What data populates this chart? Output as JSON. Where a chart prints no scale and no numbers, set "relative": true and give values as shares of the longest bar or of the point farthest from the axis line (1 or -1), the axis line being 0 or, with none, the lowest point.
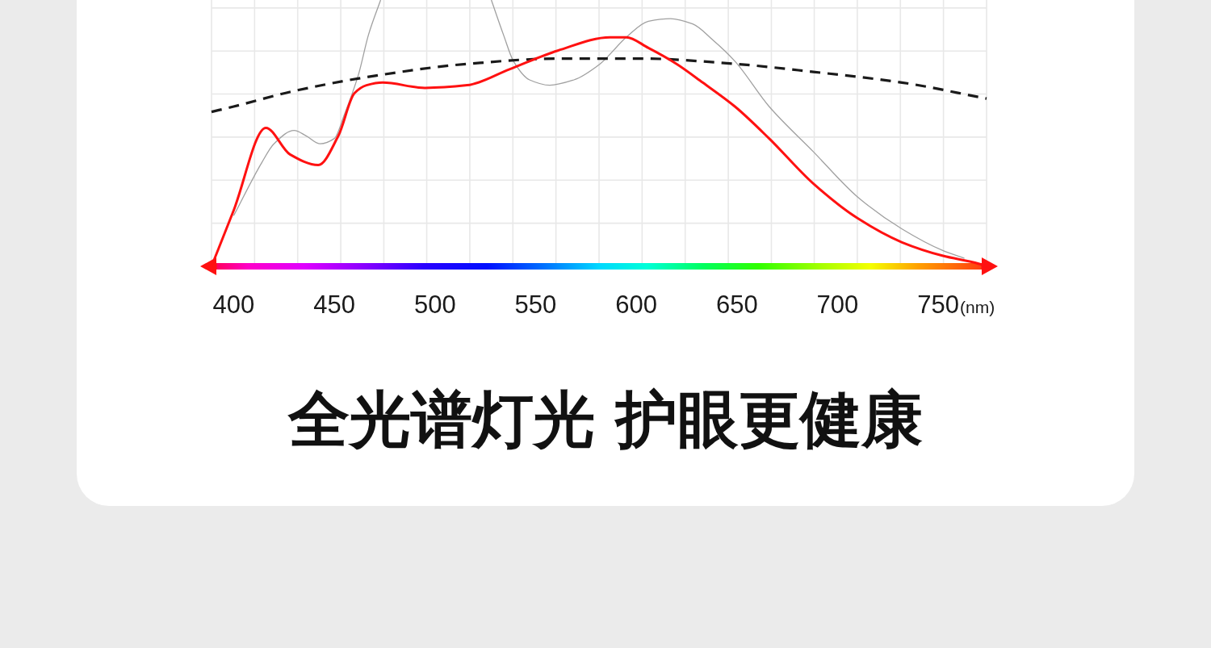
{
  "chart_data": {
    "type": "line",
    "title": "全光谱灯光 护眼更健康",
    "xlabel": "(nm)",
    "relative": true,
    "xlim": [
      389,
      774
    ],
    "xticks": [
      400,
      450,
      500,
      550,
      600,
      650,
      700,
      750,
      {
        "value": 389,
        "label": null
      },
      {
        "value": 410.4,
        "label": null
      },
      {
        "value": 431.8,
        "label": null
      },
      {
        "value": 453.2,
        "label": null
      },
      {
        "value": 474.6,
        "label": null
      },
      {
        "value": 495.9,
        "label": null
      },
      {
        "value": 517.3,
        "label": null
      },
      {
        "value": 538.7,
        "label": null
      },
      {
        "value": 560.1,
        "label": null
      },
      {
        "value": 581.5,
        "label": null
      },
      {
        "value": 602.9,
        "label": null
      },
      {
        "value": 624.3,
        "label": null
      },
      {
        "value": 645.7,
        "label": null
      },
      {
        "value": 667.1,
        "label": null
      },
      {
        "value": 688.4,
        "label": null
      },
      {
        "value": 709.8,
        "label": null
      },
      {
        "value": 731.2,
        "label": null
      },
      {
        "value": 752.6,
        "label": null
      },
      {
        "value": 774,
        "label": null
      }
    ],
    "grid": true,
    "series": [
      {
        "color": "#a0a0a0",
        "line_style": "solid",
        "x": [
          400,
          414,
          420,
          430,
          436,
          443,
          450,
          455,
          462,
          467,
          473
        ],
        "values": [
          0.19,
          0.39,
          0.46,
          0.51,
          0.49,
          0.46,
          0.48,
          0.57,
          0.72,
          0.87,
          1
        ]
      },
      {
        "color": "#a0a0a0",
        "line_style": "solid",
        "x": [
          528,
          534,
          539,
          547,
          557,
          569,
          582,
          595,
          606,
          617,
          628,
          638,
          649,
          666,
          688,
          710,
          732,
          752,
          763
        ],
        "values": [
          1,
          0.87,
          0.77,
          0.7,
          0.68,
          0.7,
          0.76,
          0.86,
          0.92,
          0.93,
          0.91,
          0.85,
          0.77,
          0.6,
          0.43,
          0.26,
          0.14,
          0.06,
          0.03
        ]
      },
      {
        "color": "#1a1a1a",
        "line_style": "dashed",
        "x": [
          389,
          400,
          431,
          474,
          516,
          561,
          582,
          603,
          649,
          688,
          732,
          774
        ],
        "values": [
          0.58,
          0.6,
          0.66,
          0.72,
          0.76,
          0.78,
          0.78,
          0.78,
          0.76,
          0.73,
          0.69,
          0.63
        ]
      },
      {
        "color": "#ff1111",
        "line_style": "solid",
        "x": [
          389,
          400,
          416,
          428,
          442,
          452,
          460,
          466,
          474,
          495,
          516,
          537,
          561,
          587,
          595,
          606,
          620,
          633,
          649,
          666,
          688,
          710,
          732,
          752,
          770,
          774
        ],
        "values": [
          0,
          0.21,
          0.52,
          0.42,
          0.38,
          0.49,
          0.65,
          0.68,
          0.69,
          0.67,
          0.68,
          0.74,
          0.81,
          0.86,
          0.86,
          0.82,
          0.76,
          0.69,
          0.6,
          0.48,
          0.31,
          0.18,
          0.09,
          0.04,
          0.01,
          0
        ]
      }
    ]
  }
}
